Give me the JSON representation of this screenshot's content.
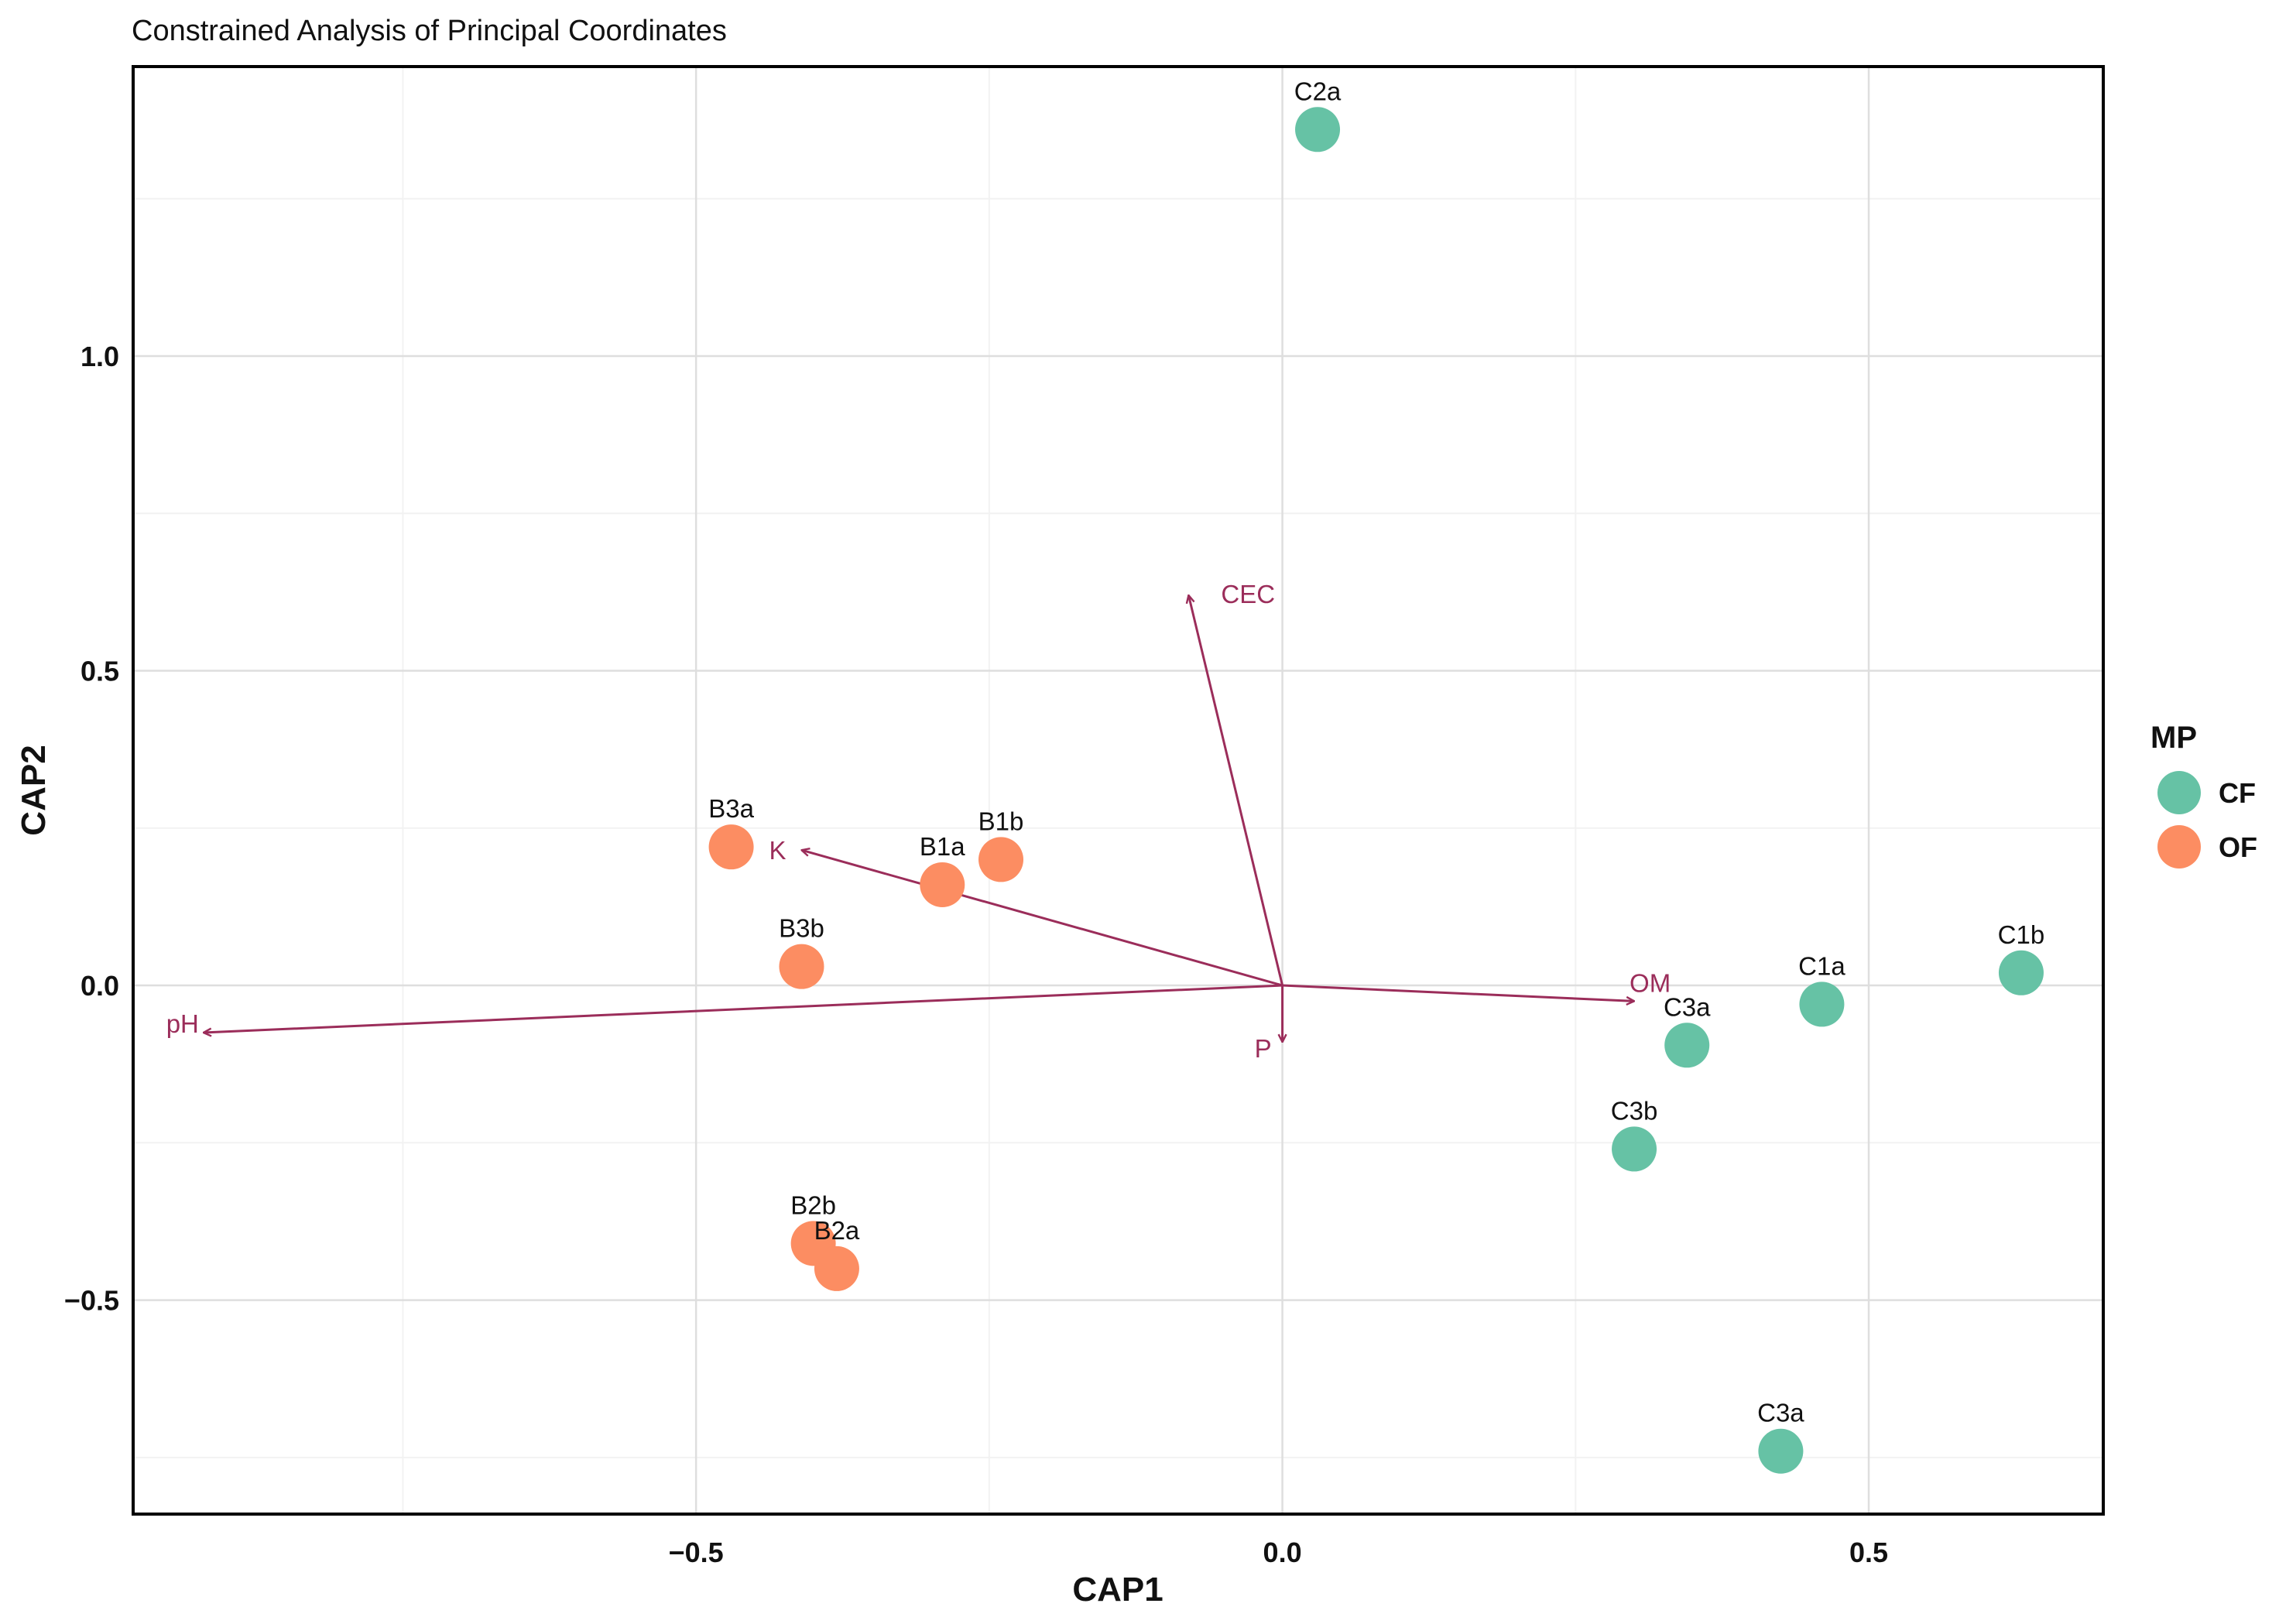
{
  "chart_data": {
    "type": "scatter",
    "title": "Constrained Analysis of Principal Coordinates",
    "xlabel": "CAP1",
    "ylabel": "CAP2",
    "xlim": [
      -0.98,
      0.7
    ],
    "ylim": [
      -0.84,
      1.46
    ],
    "grid": true,
    "x_ticks": [
      {
        "value": -0.5,
        "label": "−0.5"
      },
      {
        "value": 0.0,
        "label": "0.0"
      },
      {
        "value": 0.5,
        "label": "0.5"
      }
    ],
    "y_ticks": [
      {
        "value": -0.5,
        "label": "−0.5"
      },
      {
        "value": 0.0,
        "label": "0.0"
      },
      {
        "value": 0.5,
        "label": "0.5"
      },
      {
        "value": 1.0,
        "label": "1.0"
      }
    ],
    "minor_x": [
      -0.75,
      -0.25,
      0.25
    ],
    "minor_y": [
      -0.75,
      -0.25,
      0.25,
      0.75,
      1.25
    ],
    "legend": {
      "title": "MP",
      "position": "right",
      "entries": [
        {
          "label": "CF",
          "color": "#66c2a5"
        },
        {
          "label": "OF",
          "color": "#fc8d62"
        }
      ]
    },
    "series": [
      {
        "name": "CF",
        "color": "#66c2a5",
        "points": [
          {
            "label": "C2a",
            "x": 0.03,
            "y": 1.36
          },
          {
            "label": "C1b",
            "x": 0.63,
            "y": 0.02
          },
          {
            "label": "C1a",
            "x": 0.46,
            "y": -0.03
          },
          {
            "label": "C3a",
            "x": 0.345,
            "y": -0.095
          },
          {
            "label": "C3b",
            "x": 0.3,
            "y": -0.26
          },
          {
            "label": "C3a",
            "x": 0.425,
            "y": -0.74
          }
        ]
      },
      {
        "name": "OF",
        "color": "#fc8d62",
        "points": [
          {
            "label": "B3a",
            "x": -0.47,
            "y": 0.22
          },
          {
            "label": "B1b",
            "x": -0.24,
            "y": 0.2
          },
          {
            "label": "B1a",
            "x": -0.29,
            "y": 0.16
          },
          {
            "label": "B3b",
            "x": -0.41,
            "y": 0.03
          },
          {
            "label": "B2b",
            "x": -0.4,
            "y": -0.41
          },
          {
            "label": "B2a",
            "x": -0.38,
            "y": -0.45
          }
        ]
      }
    ],
    "arrows": {
      "color": "#9b2d5a",
      "vectors": [
        {
          "label": "CEC",
          "x": -0.08,
          "y": 0.62
        },
        {
          "label": "K",
          "x": -0.41,
          "y": 0.215
        },
        {
          "label": "OM",
          "x": 0.3,
          "y": -0.025
        },
        {
          "label": "pH",
          "x": -0.92,
          "y": -0.075
        },
        {
          "label": "P",
          "x": 0.0,
          "y": -0.09
        }
      ]
    }
  }
}
